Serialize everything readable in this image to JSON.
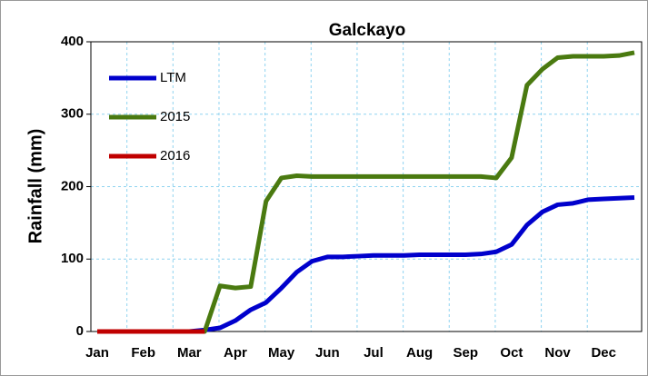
{
  "chart_data": {
    "type": "line",
    "title": "Galckayo",
    "y_label": "Rainfall (mm)",
    "categories": [
      "Jan",
      null,
      null,
      "Feb",
      null,
      null,
      "Mar",
      null,
      null,
      "Apr",
      null,
      null,
      "May",
      null,
      null,
      "Jun",
      null,
      null,
      "Jul",
      null,
      null,
      "Aug",
      null,
      null,
      "Sep",
      null,
      null,
      "Oct",
      null,
      null,
      "Nov",
      null,
      null,
      "Dec",
      null,
      null
    ],
    "series": [
      {
        "name": "LTM",
        "color": "#0000cc",
        "values": [
          0,
          0,
          0,
          0,
          0,
          0,
          0,
          2,
          5,
          15,
          30,
          40,
          60,
          82,
          97,
          103,
          103,
          104,
          105,
          105,
          105,
          106,
          106,
          106,
          106,
          107,
          110,
          120,
          147,
          165,
          175,
          177,
          182,
          183,
          184,
          185
        ]
      },
      {
        "name": "2015",
        "color": "#4a7a10",
        "values": [
          0,
          0,
          0,
          0,
          0,
          0,
          0,
          0,
          63,
          60,
          62,
          180,
          212,
          215,
          214,
          214,
          214,
          214,
          214,
          214,
          214,
          214,
          214,
          214,
          214,
          214,
          212,
          240,
          340,
          362,
          378,
          380,
          380,
          380,
          381,
          385
        ]
      },
      {
        "name": "2016",
        "color": "#c00000",
        "values": [
          0,
          0,
          0,
          0,
          0,
          0,
          0,
          0,
          null,
          null,
          null,
          null,
          null,
          null,
          null,
          null,
          null,
          null,
          null,
          null,
          null,
          null,
          null,
          null,
          null,
          null,
          null,
          null,
          null,
          null,
          null,
          null,
          null,
          null,
          null,
          null
        ]
      }
    ],
    "ylim": [
      0,
      400
    ],
    "yticks": [
      0,
      100,
      200,
      300,
      400
    ],
    "grid": true,
    "legend": "upper left"
  }
}
